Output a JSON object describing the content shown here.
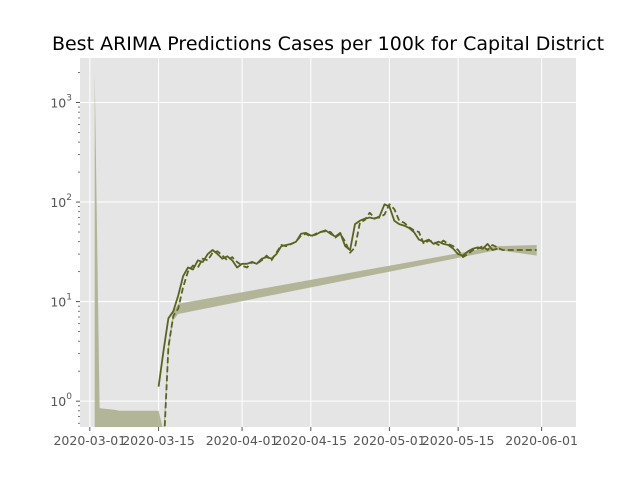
{
  "chart_data": {
    "type": "line",
    "title": "Best ARIMA Predictions Cases per 100k for Capital District",
    "xlabel": "",
    "ylabel": "",
    "yscale": "log",
    "ylim": [
      0.55,
      2800
    ],
    "xlim": [
      "2020-02-28",
      "2020-06-08"
    ],
    "grid": true,
    "legend": "none",
    "x_ticks": [
      {
        "date": "2020-03-01",
        "label": "2020-03-01"
      },
      {
        "date": "2020-03-15",
        "label": "2020-03-15"
      },
      {
        "date": "2020-04-01",
        "label": "2020-04-01"
      },
      {
        "date": "2020-04-15",
        "label": "2020-04-15"
      },
      {
        "date": "2020-05-01",
        "label": "2020-05-01"
      },
      {
        "date": "2020-05-15",
        "label": "2020-05-15"
      },
      {
        "date": "2020-06-01",
        "label": "2020-06-01"
      }
    ],
    "y_ticks": [
      {
        "value": 1,
        "base": "10",
        "exp": "0"
      },
      {
        "value": 10,
        "base": "10",
        "exp": "1"
      },
      {
        "value": 100,
        "base": "10",
        "exp": "2"
      },
      {
        "value": 1000,
        "base": "10",
        "exp": "3"
      }
    ],
    "colors": {
      "background": "#e5e5e5",
      "grid": "#ffffff",
      "actual": "#5a6320",
      "predicted": "#5a6320",
      "band": "#a9ad8a"
    },
    "series": [
      {
        "style": "solid",
        "points": [
          [
            "2020-03-15",
            1.4
          ],
          [
            "2020-03-16",
            3.2
          ],
          [
            "2020-03-17",
            6.8
          ],
          [
            "2020-03-18",
            8.0
          ],
          [
            "2020-03-19",
            11.5
          ],
          [
            "2020-03-20",
            18.0
          ],
          [
            "2020-03-21",
            22.0
          ],
          [
            "2020-03-22",
            21.0
          ],
          [
            "2020-03-23",
            26.0
          ],
          [
            "2020-03-24",
            25.0
          ],
          [
            "2020-03-25",
            30.0
          ],
          [
            "2020-03-26",
            33.0
          ],
          [
            "2020-03-27",
            30.0
          ],
          [
            "2020-03-28",
            27.0
          ],
          [
            "2020-03-29",
            28.5
          ],
          [
            "2020-03-30",
            26.0
          ],
          [
            "2020-03-31",
            22.0
          ],
          [
            "2020-04-01",
            24.0
          ],
          [
            "2020-04-02",
            24.0
          ],
          [
            "2020-04-03",
            25.0
          ],
          [
            "2020-04-04",
            24.0
          ],
          [
            "2020-04-05",
            27.0
          ],
          [
            "2020-04-06",
            28.0
          ],
          [
            "2020-04-07",
            27.0
          ],
          [
            "2020-04-08",
            30.0
          ],
          [
            "2020-04-09",
            36.0
          ],
          [
            "2020-04-10",
            37.0
          ],
          [
            "2020-04-11",
            38.0
          ],
          [
            "2020-04-12",
            40.0
          ],
          [
            "2020-04-13",
            48.0
          ],
          [
            "2020-04-14",
            49.0
          ],
          [
            "2020-04-15",
            46.0
          ],
          [
            "2020-04-16",
            47.0
          ],
          [
            "2020-04-17",
            50.0
          ],
          [
            "2020-04-18",
            52.0
          ],
          [
            "2020-04-19",
            48.0
          ],
          [
            "2020-04-20",
            45.0
          ],
          [
            "2020-04-21",
            49.0
          ],
          [
            "2020-04-22",
            36.0
          ],
          [
            "2020-04-23",
            33.0
          ],
          [
            "2020-04-24",
            60.0
          ],
          [
            "2020-04-25",
            65.0
          ],
          [
            "2020-04-26",
            68.0
          ],
          [
            "2020-04-27",
            70.0
          ],
          [
            "2020-04-28",
            68.0
          ],
          [
            "2020-04-29",
            72.0
          ],
          [
            "2020-04-30",
            95.0
          ],
          [
            "2020-05-01",
            90.0
          ],
          [
            "2020-05-02",
            65.0
          ],
          [
            "2020-05-03",
            60.0
          ],
          [
            "2020-05-04",
            58.0
          ],
          [
            "2020-05-05",
            55.0
          ],
          [
            "2020-05-06",
            50.0
          ],
          [
            "2020-05-07",
            42.0
          ],
          [
            "2020-05-08",
            40.0
          ],
          [
            "2020-05-09",
            42.0
          ],
          [
            "2020-05-10",
            38.0
          ],
          [
            "2020-05-11",
            40.0
          ],
          [
            "2020-05-12",
            38.0
          ],
          [
            "2020-05-13",
            37.0
          ],
          [
            "2020-05-14",
            34.0
          ],
          [
            "2020-05-15",
            30.0
          ],
          [
            "2020-05-16",
            29.0
          ],
          [
            "2020-05-17",
            32.0
          ],
          [
            "2020-05-18",
            34.0
          ],
          [
            "2020-05-19",
            35.0
          ],
          [
            "2020-05-20",
            34.0
          ],
          [
            "2020-05-21",
            38.0
          ],
          [
            "2020-05-22",
            33.0
          ],
          [
            "2020-05-23",
            34.0
          ]
        ]
      },
      {
        "style": "dashed",
        "points": [
          [
            "2020-03-16",
            0.3
          ],
          [
            "2020-03-17",
            3.5
          ],
          [
            "2020-03-18",
            7.2
          ],
          [
            "2020-03-19",
            8.5
          ],
          [
            "2020-03-20",
            14.0
          ],
          [
            "2020-03-21",
            20.0
          ],
          [
            "2020-03-22",
            23.0
          ],
          [
            "2020-03-23",
            22.0
          ],
          [
            "2020-03-24",
            27.0
          ],
          [
            "2020-03-25",
            26.0
          ],
          [
            "2020-03-26",
            31.0
          ],
          [
            "2020-03-27",
            32.0
          ],
          [
            "2020-03-28",
            29.0
          ],
          [
            "2020-03-29",
            26.0
          ],
          [
            "2020-03-30",
            28.0
          ],
          [
            "2020-03-31",
            25.0
          ],
          [
            "2020-04-01",
            23.0
          ],
          [
            "2020-04-02",
            22.0
          ],
          [
            "2020-04-03",
            25.0
          ],
          [
            "2020-04-04",
            24.0
          ],
          [
            "2020-04-05",
            26.0
          ],
          [
            "2020-04-06",
            29.0
          ],
          [
            "2020-04-07",
            26.0
          ],
          [
            "2020-04-08",
            31.0
          ],
          [
            "2020-04-09",
            37.0
          ],
          [
            "2020-04-10",
            36.0
          ],
          [
            "2020-04-11",
            38.0
          ],
          [
            "2020-04-12",
            40.0
          ],
          [
            "2020-04-13",
            46.0
          ],
          [
            "2020-04-14",
            48.0
          ],
          [
            "2020-04-15",
            45.0
          ],
          [
            "2020-04-16",
            48.0
          ],
          [
            "2020-04-17",
            50.0
          ],
          [
            "2020-04-18",
            51.0
          ],
          [
            "2020-04-19",
            50.0
          ],
          [
            "2020-04-20",
            44.0
          ],
          [
            "2020-04-21",
            48.0
          ],
          [
            "2020-04-22",
            40.0
          ],
          [
            "2020-04-23",
            31.0
          ],
          [
            "2020-04-24",
            35.0
          ],
          [
            "2020-04-25",
            62.0
          ],
          [
            "2020-04-26",
            66.0
          ],
          [
            "2020-04-27",
            78.0
          ],
          [
            "2020-04-28",
            69.0
          ],
          [
            "2020-04-29",
            70.0
          ],
          [
            "2020-04-30",
            75.0
          ],
          [
            "2020-05-01",
            95.0
          ],
          [
            "2020-05-02",
            85.0
          ],
          [
            "2020-05-03",
            65.0
          ],
          [
            "2020-05-04",
            62.0
          ],
          [
            "2020-05-05",
            56.0
          ],
          [
            "2020-05-06",
            52.0
          ],
          [
            "2020-05-07",
            50.0
          ],
          [
            "2020-05-08",
            38.0
          ],
          [
            "2020-05-09",
            41.0
          ],
          [
            "2020-05-10",
            40.0
          ],
          [
            "2020-05-11",
            37.0
          ],
          [
            "2020-05-12",
            41.0
          ],
          [
            "2020-05-13",
            38.0
          ],
          [
            "2020-05-14",
            36.0
          ],
          [
            "2020-05-15",
            33.0
          ],
          [
            "2020-05-16",
            28.0
          ],
          [
            "2020-05-17",
            30.0
          ],
          [
            "2020-05-18",
            33.0
          ],
          [
            "2020-05-19",
            34.0
          ],
          [
            "2020-05-20",
            36.0
          ],
          [
            "2020-05-21",
            33.0
          ],
          [
            "2020-05-22",
            37.0
          ],
          [
            "2020-05-23",
            35.0
          ],
          [
            "2020-05-24",
            33.0
          ],
          [
            "2020-05-25",
            33.0
          ],
          [
            "2020-05-26",
            33.0
          ],
          [
            "2020-05-27",
            33.0
          ],
          [
            "2020-05-28",
            33.0
          ],
          [
            "2020-05-29",
            33.0
          ],
          [
            "2020-05-30",
            33.0
          ],
          [
            "2020-05-31",
            33.0
          ]
        ]
      }
    ],
    "band": {
      "points": [
        [
          "2020-03-02",
          0.3,
          2000
        ],
        [
          "2020-03-03",
          0.3,
          0.85
        ],
        [
          "2020-03-06",
          0.3,
          0.82
        ],
        [
          "2020-03-07",
          0.3,
          0.8
        ],
        [
          "2020-03-15",
          0.3,
          0.8
        ],
        [
          "2020-03-16",
          0.3,
          0.5
        ],
        [
          "2020-03-17",
          3.0,
          4.0
        ],
        [
          "2020-03-18",
          6.5,
          7.8
        ],
        [
          "2020-03-19",
          7.5,
          9.5
        ],
        [
          "2020-05-23",
          33.0,
          36.0
        ],
        [
          "2020-05-31",
          29.0,
          37.0
        ]
      ]
    }
  }
}
